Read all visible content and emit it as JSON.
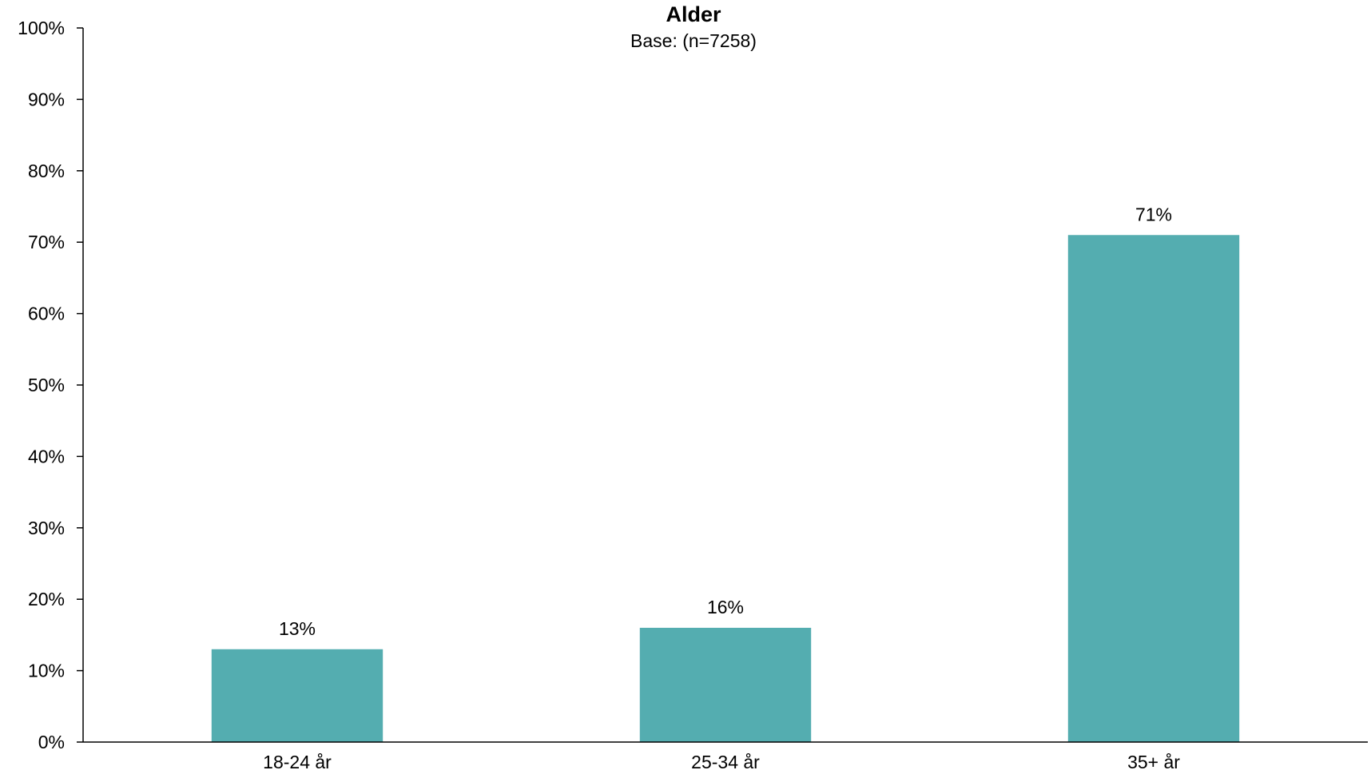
{
  "chart_data": {
    "type": "bar",
    "title": "Alder",
    "subtitle": "Base: (n=7258)",
    "categories": [
      "18-24 år",
      "25-34 år",
      "35+ år"
    ],
    "values": [
      13,
      16,
      71
    ],
    "data_labels": [
      "13%",
      "16%",
      "71%"
    ],
    "ylim": [
      0,
      100
    ],
    "yticks": [
      0,
      10,
      20,
      30,
      40,
      50,
      60,
      70,
      80,
      90,
      100
    ],
    "ytick_labels": [
      "0%",
      "10%",
      "20%",
      "30%",
      "40%",
      "50%",
      "60%",
      "70%",
      "80%",
      "90%",
      "100%"
    ],
    "xlabel": "",
    "ylabel": "",
    "grid": false,
    "legend": "none",
    "bar_color": "#54ADB0"
  }
}
